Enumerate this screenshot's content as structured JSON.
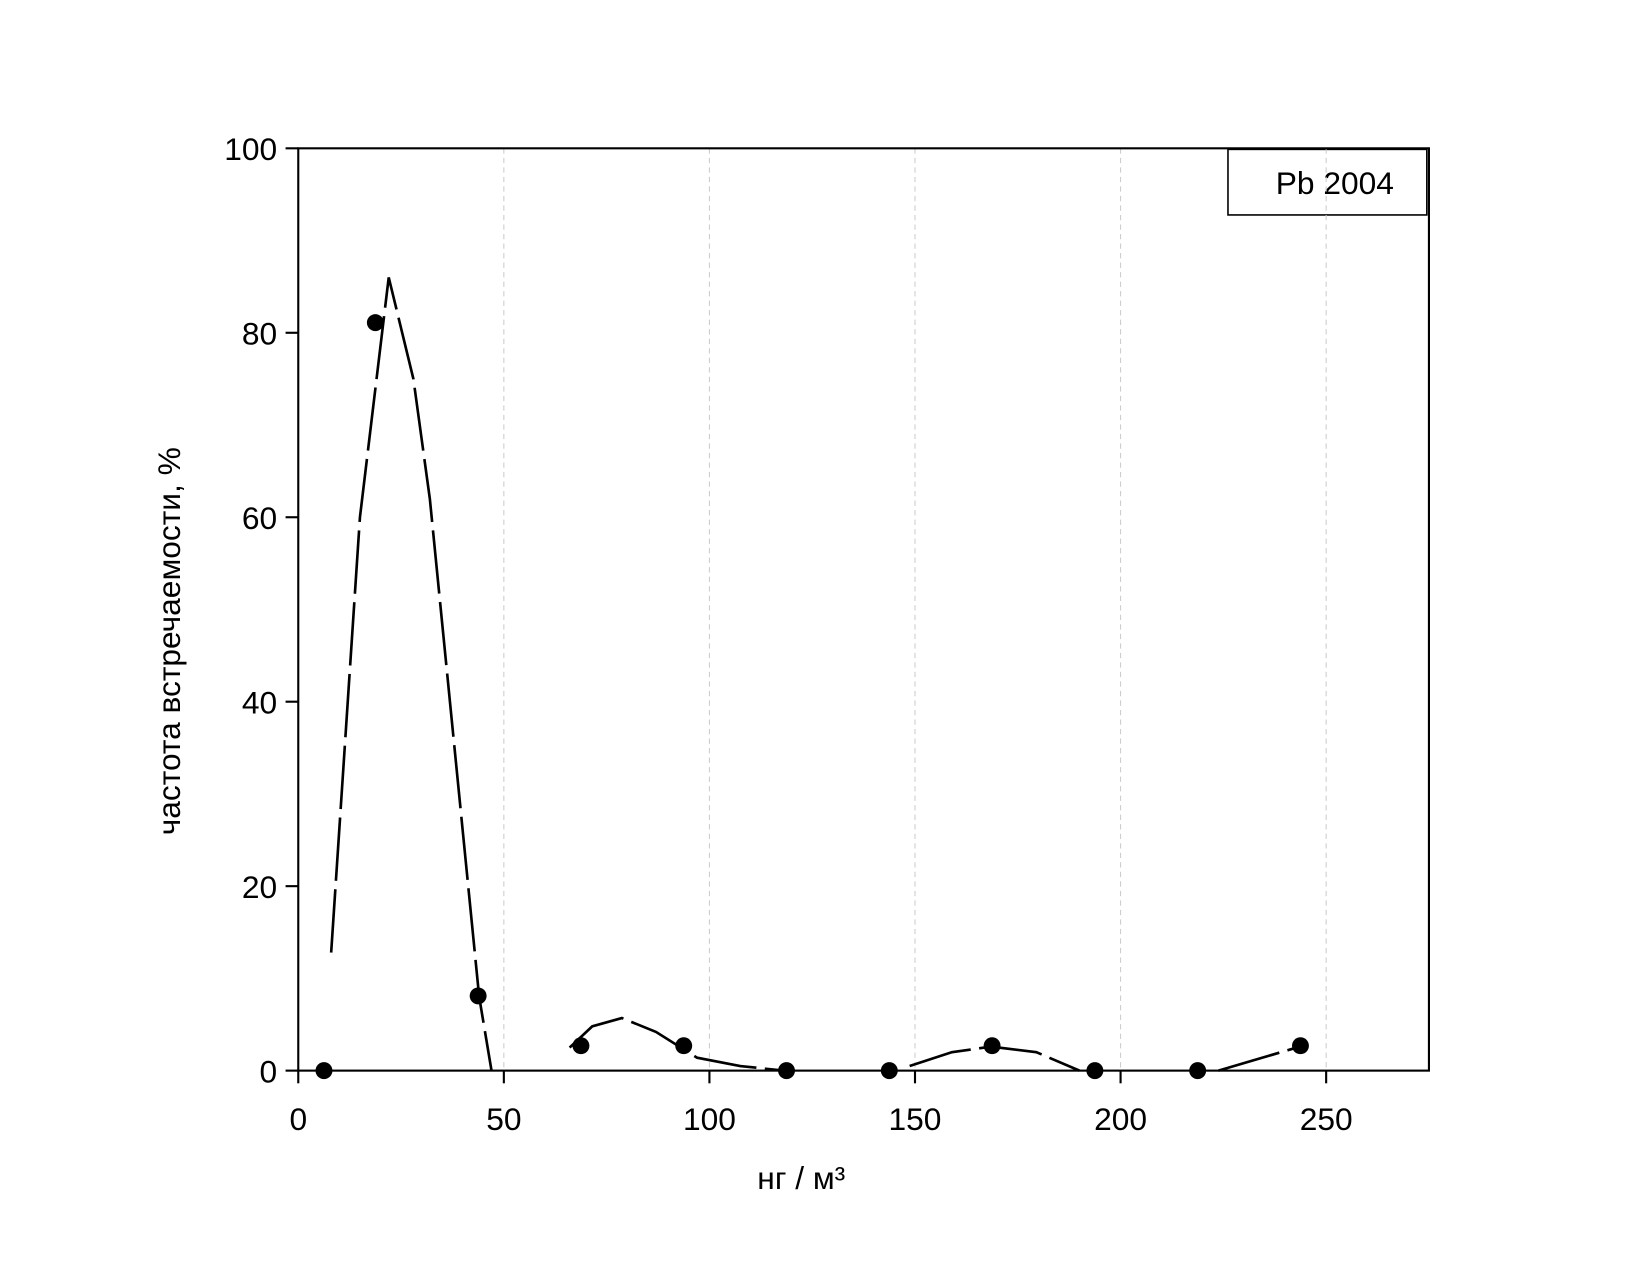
{
  "chart_data": {
    "type": "scatter",
    "xlabel": "нг / м³",
    "ylabel": "частота встречаемости, %",
    "annotation": "Pb 2004",
    "xlim": [
      0,
      275
    ],
    "xticks": [
      0,
      50,
      100,
      150,
      200,
      250
    ],
    "ylim": [
      0,
      100
    ],
    "yticks": [
      0,
      20,
      40,
      60,
      80,
      100
    ],
    "grid": "x",
    "series": [
      {
        "color": "#000000",
        "x": [
          6.25,
          18.75,
          43.75,
          68.75,
          93.75,
          118.75,
          143.75,
          168.75,
          193.75,
          218.75,
          243.75
        ],
        "values": [
          0,
          81.1,
          8.1,
          2.7,
          2.7,
          0,
          0,
          2.7,
          0,
          0,
          2.7
        ]
      },
      {
        "color": "#000000",
        "line": true,
        "x": [
          8,
          15,
          22,
          28,
          32,
          38,
          44,
          47,
          null,
          66,
          71.5,
          78.7,
          87,
          97,
          107.5,
          118,
          null,
          148.7,
          159,
          168.5,
          179.5,
          190,
          null,
          223.8,
          243.6
        ],
        "values": [
          12.8,
          60,
          86,
          75,
          62,
          35,
          8,
          0,
          null,
          2.5,
          4.8,
          5.7,
          4.2,
          1.4,
          0.5,
          0,
          null,
          0.5,
          2,
          2.6,
          2,
          0,
          null,
          0,
          2.6
        ]
      }
    ]
  }
}
